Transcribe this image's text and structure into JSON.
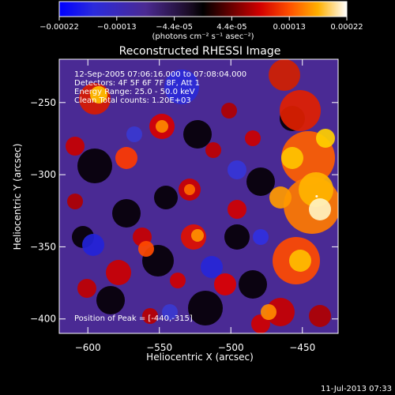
{
  "chart_data": {
    "type": "heatmap",
    "title": "Reconstructed RHESSI Image",
    "xlabel": "Heliocentric X (arcsec)",
    "ylabel": "Heliocentric Y (arcsec)",
    "xlim": [
      -620,
      -425
    ],
    "ylim": [
      -410,
      -220
    ],
    "x_ticks": [
      -600,
      -550,
      -500,
      -450
    ],
    "y_ticks": [
      -400,
      -350,
      -300,
      -250
    ],
    "colorbar": {
      "range": [
        -0.00022,
        0.00022
      ],
      "tick_labels": [
        "-0.00022",
        "-0.00013",
        "-4.4e-05",
        "4.4e-05",
        "0.00013",
        "0.00022"
      ],
      "unit_label": "(photons cm⁻² s⁻¹ asec⁻²)"
    },
    "annotations": {
      "time": "12-Sep-2005 07:06:16.000 to 07:08:04.000",
      "detectors": "Detectors: 4F 5F 6F 7F 8F, Att 1",
      "energy": "Energy Range: 25.0 - 50.0 keV",
      "clean": "Clean     Total counts: 1.20E+03",
      "peak": "Position of Peak = [-440,-315]"
    },
    "peak": {
      "x": -440,
      "y": -315
    },
    "colors": {
      "background": "#000000",
      "axes": "#ffffff"
    }
  },
  "footer": {
    "timestamp": "11-Jul-2013 07:33"
  }
}
